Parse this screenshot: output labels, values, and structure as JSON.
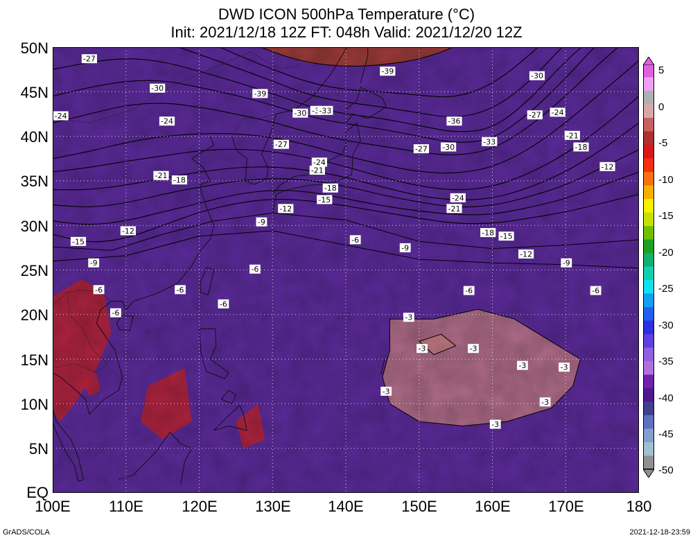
{
  "title": {
    "line1": "DWD ICON 500hPa Temperature (°C)",
    "line2": "Init: 2021/12/18 12Z  FT: 048h  Valid: 2021/12/20 12Z"
  },
  "axes": {
    "lat_labels": [
      "50N",
      "45N",
      "40N",
      "35N",
      "30N",
      "25N",
      "20N",
      "15N",
      "10N",
      "5N",
      "EQ"
    ],
    "lon_labels": [
      "100E",
      "110E",
      "120E",
      "130E",
      "140E",
      "150E",
      "160E",
      "170E",
      "180"
    ]
  },
  "colorbar": {
    "labels": [
      "5",
      "0",
      "-5",
      "-10",
      "-15",
      "-20",
      "-25",
      "-30",
      "-35",
      "-40",
      "-45",
      "-50"
    ],
    "colors_top_to_bottom": [
      "#e060e0",
      "#f0a0f0",
      "#b0b0b0",
      "#d8a8a8",
      "#c86060",
      "#b03030",
      "#d81818",
      "#f03010",
      "#f87010",
      "#f8b000",
      "#f8f000",
      "#c8e000",
      "#70c000",
      "#20a020",
      "#10b070",
      "#10d0b0",
      "#10e0f0",
      "#10a0f0",
      "#2060f0",
      "#3030e0",
      "#6040e0",
      "#9060e0",
      "#b070e0",
      "#7020b0",
      "#501890",
      "#404090",
      "#6070c0",
      "#80a0d0",
      "#a0c0d0",
      "#909090"
    ]
  },
  "contour_labels": [
    {
      "t": "-27",
      "lon": 105,
      "lat": 48.7
    },
    {
      "t": "-30",
      "lon": 114.3,
      "lat": 45.4
    },
    {
      "t": "-24",
      "lon": 101.1,
      "lat": 42.3
    },
    {
      "t": "-24",
      "lon": 115.6,
      "lat": 41.7
    },
    {
      "t": "-39",
      "lon": 128.3,
      "lat": 44.8
    },
    {
      "t": "-39",
      "lon": 145.7,
      "lat": 47.3
    },
    {
      "t": "-30",
      "lon": 166.1,
      "lat": 46.8
    },
    {
      "t": "-30",
      "lon": 133.8,
      "lat": 42.6
    },
    {
      "t": "-3",
      "lon": 135.9,
      "lat": 42.9
    },
    {
      "t": "-33",
      "lon": 137.2,
      "lat": 42.9
    },
    {
      "t": "-36",
      "lon": 154.8,
      "lat": 41.7
    },
    {
      "t": "-27",
      "lon": 165.8,
      "lat": 42.4
    },
    {
      "t": "-24",
      "lon": 168.9,
      "lat": 42.7
    },
    {
      "t": "-21",
      "lon": 170.9,
      "lat": 40.1
    },
    {
      "t": "-18",
      "lon": 172.1,
      "lat": 38.8
    },
    {
      "t": "-12",
      "lon": 175.7,
      "lat": 36.6
    },
    {
      "t": "-33",
      "lon": 159.6,
      "lat": 39.4
    },
    {
      "t": "-30",
      "lon": 154,
      "lat": 38.8
    },
    {
      "t": "-27",
      "lon": 150.3,
      "lat": 38.6
    },
    {
      "t": "-27",
      "lon": 131.2,
      "lat": 39.1
    },
    {
      "t": "-24",
      "lon": 136.4,
      "lat": 37.1
    },
    {
      "t": "-21",
      "lon": 136.1,
      "lat": 36.2
    },
    {
      "t": "-21",
      "lon": 114.8,
      "lat": 35.6
    },
    {
      "t": "-18",
      "lon": 117.3,
      "lat": 35.1
    },
    {
      "t": "-18",
      "lon": 137.9,
      "lat": 34.2
    },
    {
      "t": "-15",
      "lon": 137.1,
      "lat": 32.9
    },
    {
      "t": "-12",
      "lon": 131.8,
      "lat": 31.9
    },
    {
      "t": "-24",
      "lon": 155.3,
      "lat": 33.1
    },
    {
      "t": "-21",
      "lon": 154.8,
      "lat": 31.9
    },
    {
      "t": "-18",
      "lon": 159.4,
      "lat": 29.2
    },
    {
      "t": "-15",
      "lon": 161.9,
      "lat": 28.8
    },
    {
      "t": "-12",
      "lon": 164.6,
      "lat": 26.8
    },
    {
      "t": "-9",
      "lon": 170.1,
      "lat": 25.8
    },
    {
      "t": "-6",
      "lon": 174.1,
      "lat": 22.7
    },
    {
      "t": "-6",
      "lon": 156.8,
      "lat": 22.7
    },
    {
      "t": "-9",
      "lon": 128.5,
      "lat": 30.4
    },
    {
      "t": "-12",
      "lon": 110.3,
      "lat": 29.4
    },
    {
      "t": "-15",
      "lon": 103.5,
      "lat": 28.2
    },
    {
      "t": "-9",
      "lon": 105.6,
      "lat": 25.8
    },
    {
      "t": "-9",
      "lon": 148.1,
      "lat": 27.5
    },
    {
      "t": "-6",
      "lon": 141.3,
      "lat": 28.4
    },
    {
      "t": "-6",
      "lon": 127.6,
      "lat": 25.1
    },
    {
      "t": "-6",
      "lon": 106.3,
      "lat": 22.8
    },
    {
      "t": "-6",
      "lon": 117.4,
      "lat": 22.8
    },
    {
      "t": "-6",
      "lon": 123.3,
      "lat": 21.2
    },
    {
      "t": "-6",
      "lon": 108.6,
      "lat": 20.2
    },
    {
      "t": "-3",
      "lon": 148.6,
      "lat": 19.7
    },
    {
      "t": "-3",
      "lon": 150.4,
      "lat": 16.2
    },
    {
      "t": "-3",
      "lon": 157.4,
      "lat": 16.2
    },
    {
      "t": "-3",
      "lon": 164.1,
      "lat": 14.3
    },
    {
      "t": "-3",
      "lon": 169.8,
      "lat": 14.1
    },
    {
      "t": "-3",
      "lon": 145.5,
      "lat": 11.4
    },
    {
      "t": "-3",
      "lon": 167.2,
      "lat": 10.2
    },
    {
      "t": "-3",
      "lon": 160.4,
      "lat": 7.7
    }
  ],
  "footer": {
    "left": "GrADS/COLA",
    "right": "2021-12-18-23:59"
  }
}
